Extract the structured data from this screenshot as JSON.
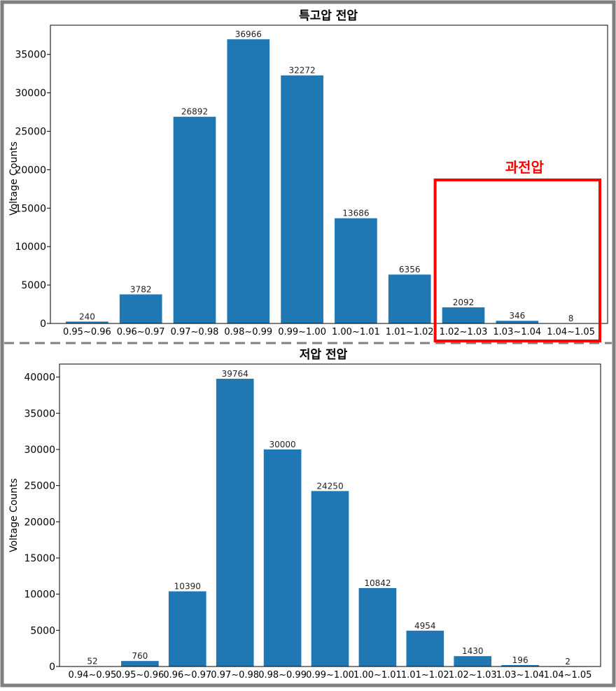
{
  "chart_data": [
    {
      "type": "bar",
      "title": "특고압 전압",
      "xlabel": "",
      "ylabel": "Voltage Counts",
      "categories": [
        "0.95~0.96",
        "0.96~0.97",
        "0.97~0.98",
        "0.98~0.99",
        "0.99~1.00",
        "1.00~1.01",
        "1.01~1.02",
        "1.02~1.03",
        "1.03~1.04",
        "1.04~1.05"
      ],
      "values": [
        240,
        3782,
        26892,
        36966,
        32272,
        13686,
        6356,
        2092,
        346,
        8
      ],
      "value_labels": [
        "240",
        "3782",
        "26892",
        "36966",
        "32272",
        "13686",
        "6356",
        "2092",
        "346",
        "8"
      ],
      "yticks": [
        0,
        5000,
        10000,
        15000,
        20000,
        25000,
        30000,
        35000
      ],
      "ytick_labels": [
        "0",
        "5000",
        "10000",
        "15000",
        "20000",
        "25000",
        "30000",
        "35000"
      ],
      "ylim": [
        0,
        38800
      ],
      "bar_color": "#1f77b4",
      "grid": false,
      "annotation": {
        "text": "과전압",
        "color": "#ff0000",
        "covers_categories": [
          "1.02~1.03",
          "1.03~1.04",
          "1.04~1.05"
        ]
      }
    },
    {
      "type": "bar",
      "title": "저압 전압",
      "xlabel": "",
      "ylabel": "Voltage Counts",
      "categories": [
        "0.94~0.95",
        "0.95~0.96",
        "0.96~0.97",
        "0.97~0.98",
        "0.98~0.99",
        "0.99~1.00",
        "1.00~1.01",
        "1.01~1.02",
        "1.02~1.03",
        "1.03~1.04",
        "1.04~1.05"
      ],
      "values": [
        52,
        760,
        10390,
        39764,
        30000,
        24250,
        10842,
        4954,
        1430,
        196,
        2
      ],
      "value_labels": [
        "52",
        "760",
        "10390",
        "39764",
        "30000",
        "24250",
        "10842",
        "4954",
        "1430",
        "196",
        "2"
      ],
      "yticks": [
        0,
        5000,
        10000,
        15000,
        20000,
        25000,
        30000,
        35000,
        40000
      ],
      "ytick_labels": [
        "0",
        "5000",
        "10000",
        "15000",
        "20000",
        "25000",
        "30000",
        "35000",
        "40000"
      ],
      "ylim": [
        0,
        41800
      ],
      "bar_color": "#1f77b4",
      "grid": false
    }
  ],
  "colors": {
    "frame": "#7f7f7f",
    "divider": "#808080",
    "bar": "#1f77b4",
    "annotation": "#ff0000"
  }
}
